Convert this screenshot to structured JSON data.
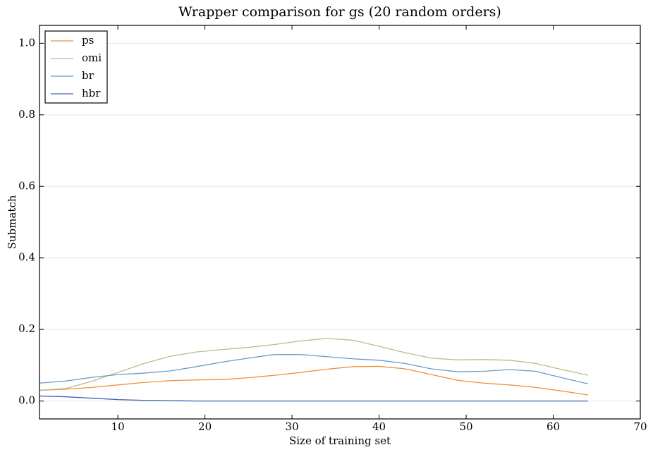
{
  "chart_data": {
    "type": "line",
    "title": "Wrapper comparison for gs (20 random orders)",
    "x_label": "Size of training set",
    "y_label": "Submatch",
    "x": [
      1,
      4,
      7,
      10,
      13,
      16,
      19,
      22,
      25,
      28,
      31,
      34,
      37,
      40,
      43,
      46,
      49,
      52,
      55,
      58,
      61,
      64
    ],
    "series": [
      {
        "name": "ps",
        "color": "#ef8f3c",
        "values": [
          0.03,
          0.033,
          0.038,
          0.045,
          0.052,
          0.057,
          0.059,
          0.06,
          0.065,
          0.072,
          0.08,
          0.089,
          0.096,
          0.097,
          0.09,
          0.074,
          0.058,
          0.05,
          0.045,
          0.038,
          0.028,
          0.017
        ]
      },
      {
        "name": "omi",
        "color": "#b5bd89",
        "values": [
          0.03,
          0.035,
          0.055,
          0.08,
          0.105,
          0.125,
          0.137,
          0.144,
          0.15,
          0.158,
          0.168,
          0.175,
          0.17,
          0.153,
          0.135,
          0.12,
          0.115,
          0.116,
          0.114,
          0.105,
          0.088,
          0.072
        ]
      },
      {
        "name": "br",
        "color": "#6b9bc8",
        "values": [
          0.05,
          0.056,
          0.066,
          0.074,
          0.078,
          0.084,
          0.096,
          0.109,
          0.12,
          0.13,
          0.13,
          0.124,
          0.118,
          0.114,
          0.105,
          0.09,
          0.082,
          0.083,
          0.088,
          0.083,
          0.065,
          0.048
        ]
      },
      {
        "name": "hbr",
        "color": "#4060b0",
        "values": [
          0.014,
          0.012,
          0.008,
          0.004,
          0.002,
          0.001,
          0,
          0,
          0,
          0,
          0,
          0,
          0,
          0,
          0,
          0,
          0,
          0,
          0,
          0,
          0,
          0
        ]
      }
    ],
    "xlim": [
      1,
      70
    ],
    "ylim": [
      -0.05,
      1.05
    ],
    "xticks": [
      10,
      20,
      30,
      40,
      50,
      60,
      70
    ],
    "yticks": [
      {
        "value": 0,
        "label": "0.0"
      },
      {
        "value": 0.2,
        "label": "0.2"
      },
      {
        "value": 0.4,
        "label": "0.4"
      },
      {
        "value": 0.6,
        "label": "0.6"
      },
      {
        "value": 0.8,
        "label": "0.8"
      },
      {
        "value": 1,
        "label": "1.0"
      }
    ],
    "grid": true,
    "legend": "upper-left"
  }
}
